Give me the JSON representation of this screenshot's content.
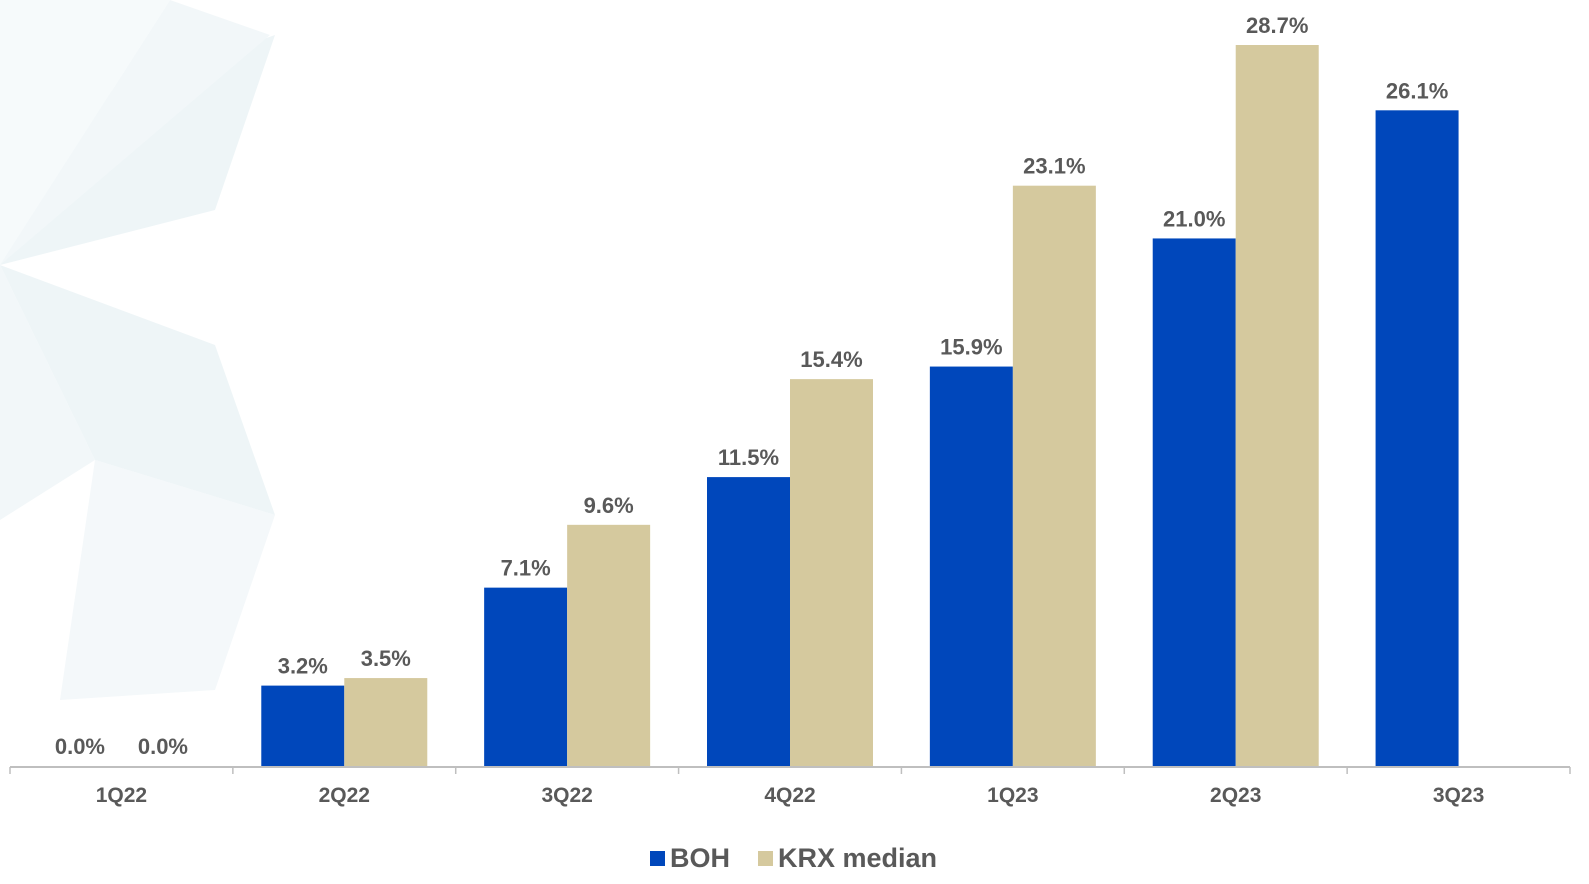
{
  "chart_data": {
    "type": "bar",
    "title": "",
    "xlabel": "",
    "ylabel": "",
    "categories": [
      "1Q22",
      "2Q22",
      "3Q22",
      "4Q22",
      "1Q23",
      "2Q23",
      "3Q23"
    ],
    "series": [
      {
        "name": "BOH",
        "color": "#0047BB",
        "values": [
          0.0,
          3.2,
          7.1,
          11.5,
          15.9,
          21.0,
          26.1
        ],
        "labels": [
          "0.0%",
          "3.2%",
          "7.1%",
          "11.5%",
          "15.9%",
          "21.0%",
          "26.1%"
        ]
      },
      {
        "name": "KRX median",
        "color": "#D5C99E",
        "values": [
          0.0,
          3.5,
          9.6,
          15.4,
          23.1,
          28.7,
          null
        ],
        "labels": [
          "0.0%",
          "3.5%",
          "9.6%",
          "15.4%",
          "23.1%",
          "28.7%",
          ""
        ]
      }
    ],
    "ylim": [
      0,
      30
    ],
    "grid": false,
    "legend_position": "bottom-center"
  },
  "colors": {
    "label_text": "#595959",
    "axis_line": "#BFBFBF",
    "watermark": "#EEF5F7"
  }
}
